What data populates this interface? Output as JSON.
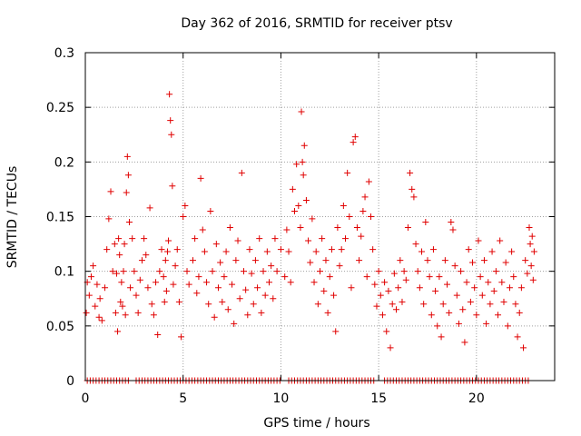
{
  "colors": {
    "series": "#e00000",
    "grid": "#a0a0a0",
    "axis": "#000000"
  },
  "chart_data": {
    "type": "scatter",
    "title": "Day 362 of 2016, SRMTID for receiver ptsv",
    "xlabel": "GPS time / hours",
    "ylabel": "SRMTID / TECUs",
    "xlim": [
      0,
      24
    ],
    "ylim": [
      0,
      0.3
    ],
    "xticks": [
      0,
      5,
      10,
      15,
      20
    ],
    "xtick_labels": [
      "0",
      "5",
      "10",
      "15",
      "20"
    ],
    "yticks": [
      0,
      0.05,
      0.1,
      0.15,
      0.2,
      0.25,
      0.3
    ],
    "ytick_labels": [
      "0",
      "0.05",
      "0.1",
      "0.15",
      "0.2",
      "0.25",
      "0.3"
    ],
    "grid": true,
    "marker": "+",
    "series": [
      {
        "name": "SRMTID",
        "points": [
          [
            0.05,
            0.062
          ],
          [
            0.1,
            0.09
          ],
          [
            0.2,
            0.078
          ],
          [
            0.3,
            0.095
          ],
          [
            0.4,
            0.105
          ],
          [
            0.5,
            0.068
          ],
          [
            0.6,
            0.088
          ],
          [
            0.7,
            0.058
          ],
          [
            0.75,
            0.075
          ],
          [
            0.85,
            0.055
          ],
          [
            1.0,
            0.085
          ],
          [
            1.1,
            0.12
          ],
          [
            1.2,
            0.148
          ],
          [
            1.3,
            0.173
          ],
          [
            1.4,
            0.1
          ],
          [
            1.5,
            0.125
          ],
          [
            1.55,
            0.062
          ],
          [
            1.6,
            0.098
          ],
          [
            1.65,
            0.045
          ],
          [
            1.7,
            0.13
          ],
          [
            1.75,
            0.115
          ],
          [
            1.8,
            0.072
          ],
          [
            1.85,
            0.09
          ],
          [
            1.9,
            0.068
          ],
          [
            1.95,
            0.1
          ],
          [
            2.0,
            0.125
          ],
          [
            2.05,
            0.06
          ],
          [
            2.1,
            0.172
          ],
          [
            2.15,
            0.205
          ],
          [
            2.2,
            0.188
          ],
          [
            2.25,
            0.145
          ],
          [
            2.3,
            0.085
          ],
          [
            2.4,
            0.13
          ],
          [
            2.5,
            0.1
          ],
          [
            2.6,
            0.078
          ],
          [
            2.7,
            0.062
          ],
          [
            2.8,
            0.092
          ],
          [
            2.9,
            0.11
          ],
          [
            3.0,
            0.13
          ],
          [
            3.1,
            0.115
          ],
          [
            3.2,
            0.085
          ],
          [
            3.3,
            0.158
          ],
          [
            3.4,
            0.07
          ],
          [
            3.5,
            0.06
          ],
          [
            3.6,
            0.09
          ],
          [
            3.7,
            0.042
          ],
          [
            3.8,
            0.1
          ],
          [
            3.9,
            0.12
          ],
          [
            4.0,
            0.095
          ],
          [
            4.05,
            0.072
          ],
          [
            4.1,
            0.11
          ],
          [
            4.15,
            0.082
          ],
          [
            4.2,
            0.118
          ],
          [
            4.25,
            0.128
          ],
          [
            4.3,
            0.262
          ],
          [
            4.35,
            0.238
          ],
          [
            4.4,
            0.225
          ],
          [
            4.45,
            0.178
          ],
          [
            4.5,
            0.088
          ],
          [
            4.6,
            0.105
          ],
          [
            4.7,
            0.12
          ],
          [
            4.8,
            0.072
          ],
          [
            4.9,
            0.04
          ],
          [
            5.0,
            0.15
          ],
          [
            5.1,
            0.16
          ],
          [
            5.2,
            0.1
          ],
          [
            5.3,
            0.088
          ],
          [
            5.5,
            0.11
          ],
          [
            5.6,
            0.13
          ],
          [
            5.7,
            0.08
          ],
          [
            5.8,
            0.095
          ],
          [
            5.9,
            0.185
          ],
          [
            6.0,
            0.138
          ],
          [
            6.1,
            0.118
          ],
          [
            6.2,
            0.09
          ],
          [
            6.3,
            0.07
          ],
          [
            6.4,
            0.155
          ],
          [
            6.5,
            0.1
          ],
          [
            6.6,
            0.058
          ],
          [
            6.7,
            0.125
          ],
          [
            6.8,
            0.085
          ],
          [
            6.9,
            0.108
          ],
          [
            7.0,
            0.072
          ],
          [
            7.1,
            0.095
          ],
          [
            7.2,
            0.118
          ],
          [
            7.3,
            0.065
          ],
          [
            7.4,
            0.14
          ],
          [
            7.5,
            0.088
          ],
          [
            7.6,
            0.052
          ],
          [
            7.7,
            0.11
          ],
          [
            7.8,
            0.128
          ],
          [
            7.9,
            0.075
          ],
          [
            8.0,
            0.19
          ],
          [
            8.1,
            0.1
          ],
          [
            8.2,
            0.083
          ],
          [
            8.3,
            0.06
          ],
          [
            8.4,
            0.12
          ],
          [
            8.5,
            0.098
          ],
          [
            8.6,
            0.07
          ],
          [
            8.7,
            0.11
          ],
          [
            8.8,
            0.085
          ],
          [
            8.9,
            0.13
          ],
          [
            9.0,
            0.062
          ],
          [
            9.1,
            0.1
          ],
          [
            9.2,
            0.078
          ],
          [
            9.3,
            0.118
          ],
          [
            9.4,
            0.09
          ],
          [
            9.5,
            0.105
          ],
          [
            9.6,
            0.075
          ],
          [
            9.7,
            0.13
          ],
          [
            9.8,
            0.1
          ],
          [
            10.0,
            0.12
          ],
          [
            10.2,
            0.095
          ],
          [
            10.3,
            0.138
          ],
          [
            10.4,
            0.118
          ],
          [
            10.5,
            0.09
          ],
          [
            10.6,
            0.175
          ],
          [
            10.7,
            0.155
          ],
          [
            10.8,
            0.198
          ],
          [
            10.9,
            0.16
          ],
          [
            11.0,
            0.14
          ],
          [
            11.05,
            0.246
          ],
          [
            11.1,
            0.2
          ],
          [
            11.15,
            0.188
          ],
          [
            11.2,
            0.215
          ],
          [
            11.3,
            0.165
          ],
          [
            11.4,
            0.128
          ],
          [
            11.5,
            0.108
          ],
          [
            11.6,
            0.148
          ],
          [
            11.7,
            0.09
          ],
          [
            11.8,
            0.118
          ],
          [
            11.9,
            0.07
          ],
          [
            12.0,
            0.1
          ],
          [
            12.1,
            0.13
          ],
          [
            12.2,
            0.082
          ],
          [
            12.3,
            0.11
          ],
          [
            12.4,
            0.062
          ],
          [
            12.5,
            0.095
          ],
          [
            12.6,
            0.12
          ],
          [
            12.7,
            0.078
          ],
          [
            12.8,
            0.045
          ],
          [
            12.9,
            0.14
          ],
          [
            13.0,
            0.105
          ],
          [
            13.1,
            0.12
          ],
          [
            13.2,
            0.16
          ],
          [
            13.3,
            0.13
          ],
          [
            13.4,
            0.19
          ],
          [
            13.5,
            0.15
          ],
          [
            13.6,
            0.085
          ],
          [
            13.7,
            0.218
          ],
          [
            13.8,
            0.223
          ],
          [
            13.9,
            0.14
          ],
          [
            14.0,
            0.11
          ],
          [
            14.1,
            0.132
          ],
          [
            14.2,
            0.155
          ],
          [
            14.3,
            0.168
          ],
          [
            14.4,
            0.095
          ],
          [
            14.5,
            0.182
          ],
          [
            14.6,
            0.15
          ],
          [
            14.7,
            0.12
          ],
          [
            14.8,
            0.088
          ],
          [
            14.9,
            0.068
          ],
          [
            15.0,
            0.1
          ],
          [
            15.1,
            0.078
          ],
          [
            15.2,
            0.06
          ],
          [
            15.3,
            0.09
          ],
          [
            15.4,
            0.045
          ],
          [
            15.5,
            0.082
          ],
          [
            15.6,
            0.03
          ],
          [
            15.7,
            0.07
          ],
          [
            15.8,
            0.098
          ],
          [
            15.9,
            0.065
          ],
          [
            16.0,
            0.085
          ],
          [
            16.1,
            0.11
          ],
          [
            16.2,
            0.072
          ],
          [
            16.3,
            0.1
          ],
          [
            16.4,
            0.092
          ],
          [
            16.5,
            0.14
          ],
          [
            16.6,
            0.19
          ],
          [
            16.7,
            0.175
          ],
          [
            16.8,
            0.168
          ],
          [
            16.9,
            0.125
          ],
          [
            17.0,
            0.1
          ],
          [
            17.1,
            0.085
          ],
          [
            17.2,
            0.118
          ],
          [
            17.3,
            0.07
          ],
          [
            17.4,
            0.145
          ],
          [
            17.5,
            0.11
          ],
          [
            17.6,
            0.095
          ],
          [
            17.7,
            0.06
          ],
          [
            17.8,
            0.12
          ],
          [
            17.9,
            0.082
          ],
          [
            18.0,
            0.05
          ],
          [
            18.1,
            0.095
          ],
          [
            18.2,
            0.04
          ],
          [
            18.3,
            0.07
          ],
          [
            18.4,
            0.11
          ],
          [
            18.5,
            0.088
          ],
          [
            18.6,
            0.062
          ],
          [
            18.7,
            0.145
          ],
          [
            18.8,
            0.138
          ],
          [
            18.9,
            0.105
          ],
          [
            19.0,
            0.078
          ],
          [
            19.1,
            0.052
          ],
          [
            19.2,
            0.1
          ],
          [
            19.3,
            0.065
          ],
          [
            19.4,
            0.035
          ],
          [
            19.5,
            0.09
          ],
          [
            19.6,
            0.12
          ],
          [
            19.7,
            0.072
          ],
          [
            19.8,
            0.108
          ],
          [
            19.9,
            0.085
          ],
          [
            20.0,
            0.06
          ],
          [
            20.1,
            0.128
          ],
          [
            20.2,
            0.095
          ],
          [
            20.3,
            0.078
          ],
          [
            20.4,
            0.11
          ],
          [
            20.5,
            0.052
          ],
          [
            20.6,
            0.09
          ],
          [
            20.7,
            0.07
          ],
          [
            20.8,
            0.118
          ],
          [
            20.9,
            0.082
          ],
          [
            21.0,
            0.1
          ],
          [
            21.1,
            0.06
          ],
          [
            21.2,
            0.128
          ],
          [
            21.3,
            0.09
          ],
          [
            21.4,
            0.072
          ],
          [
            21.5,
            0.108
          ],
          [
            21.6,
            0.05
          ],
          [
            21.7,
            0.085
          ],
          [
            21.8,
            0.118
          ],
          [
            21.9,
            0.095
          ],
          [
            22.0,
            0.07
          ],
          [
            22.1,
            0.04
          ],
          [
            22.2,
            0.062
          ],
          [
            22.3,
            0.085
          ],
          [
            22.4,
            0.03
          ],
          [
            22.5,
            0.11
          ],
          [
            22.6,
            0.098
          ],
          [
            22.7,
            0.14
          ],
          [
            22.75,
            0.125
          ],
          [
            22.8,
            0.105
          ],
          [
            22.85,
            0.132
          ],
          [
            22.9,
            0.092
          ],
          [
            22.95,
            0.118
          ]
        ],
        "zero_points_x": [
          0.1,
          0.25,
          0.4,
          0.55,
          0.7,
          0.85,
          1.0,
          1.15,
          1.3,
          1.45,
          1.6,
          1.75,
          1.9,
          2.05,
          2.2,
          2.6,
          2.75,
          2.9,
          3.05,
          3.2,
          3.35,
          3.5,
          3.65,
          3.8,
          3.95,
          4.1,
          4.25,
          4.4,
          4.55,
          4.7,
          4.85,
          5.0,
          5.15,
          5.3,
          5.45,
          5.6,
          5.75,
          5.9,
          6.05,
          6.2,
          6.35,
          6.5,
          6.65,
          6.8,
          6.95,
          7.1,
          7.25,
          7.4,
          7.55,
          7.7,
          7.85,
          8.0,
          8.15,
          8.3,
          8.45,
          8.6,
          8.75,
          8.9,
          9.05,
          9.2,
          9.35,
          9.5,
          9.65,
          9.8,
          9.95,
          10.4,
          10.55,
          10.7,
          10.85,
          11.0,
          11.15,
          11.3,
          11.45,
          11.6,
          11.75,
          11.9,
          12.05,
          12.2,
          12.35,
          12.5,
          12.65,
          12.8,
          12.95,
          13.1,
          13.25,
          13.4,
          13.55,
          13.7,
          13.85,
          14.0,
          14.15,
          14.3,
          14.45,
          14.6,
          14.75,
          15.3,
          15.45,
          15.6,
          15.75,
          15.9,
          16.05,
          16.2,
          16.35,
          16.5,
          16.65,
          16.8,
          16.95,
          17.1,
          17.25,
          17.4,
          17.55,
          17.7,
          17.85,
          18.0,
          18.15,
          18.3,
          18.45,
          18.6,
          18.75,
          18.9,
          19.05,
          19.2,
          19.35,
          19.5,
          19.65,
          19.8,
          19.95,
          20.1,
          20.25,
          20.4,
          20.55,
          20.7,
          20.85,
          21.0,
          21.15,
          21.3,
          21.45,
          21.6,
          21.75,
          21.9,
          22.05,
          22.2,
          22.35,
          22.5,
          22.65
        ]
      }
    ]
  }
}
